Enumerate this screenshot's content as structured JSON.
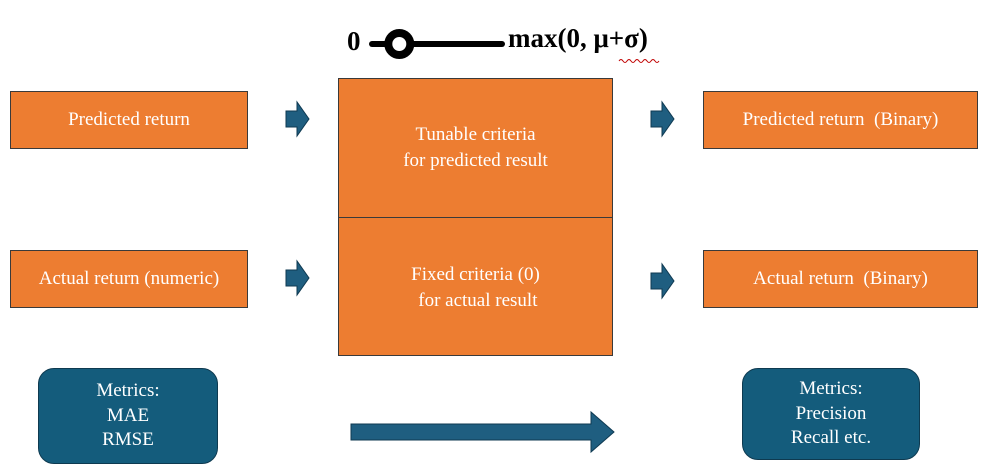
{
  "slider": {
    "min_label": "0",
    "max_label": "max(0, μ+σ)",
    "level": 0.05
  },
  "inputs": {
    "predicted": "Predicted return",
    "actual": "Actual return (numeric)"
  },
  "criteria": {
    "tunable": "Tunable criteria\nfor predicted result",
    "fixed": "Fixed criteria (0)\n for actual result"
  },
  "outputs": {
    "predicted": "Predicted return  (Binary)",
    "actual": "Actual return  (Binary)"
  },
  "metrics": {
    "left": "Metrics:\nMAE\nRMSE",
    "right": "Metrics:\nPrecision\nRecall etc."
  },
  "colors": {
    "orange_box": "#ED7D31",
    "blue_box": "#145C7C",
    "arrow": "#1F5E80"
  },
  "icons": {
    "arrow": "right-arrow-icon",
    "slider_knob": "slider-knob-icon"
  }
}
